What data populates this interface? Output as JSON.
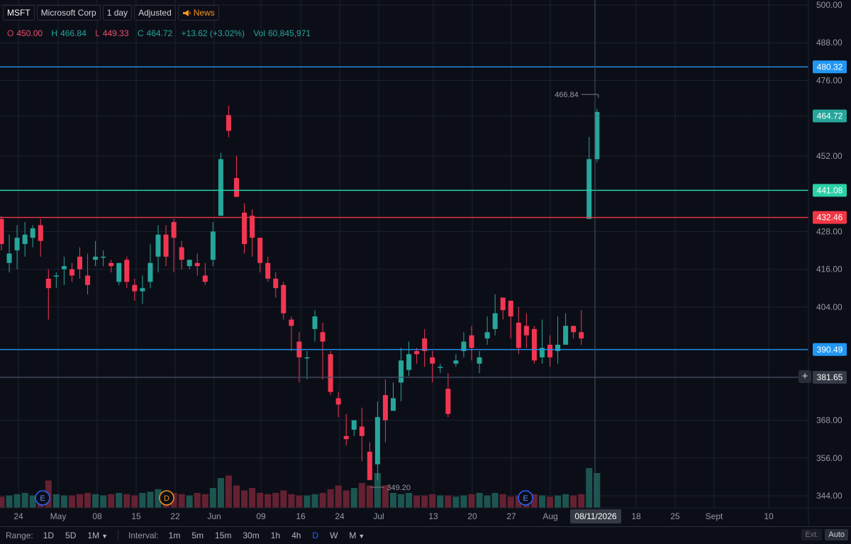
{
  "legend": {
    "symbol": "MSFT",
    "name": "Microsoft Corp",
    "interval": "1 day",
    "adjustment": "Adjusted",
    "news": "News"
  },
  "ohlc": {
    "o_label": "O",
    "o": "450.00",
    "h_label": "H",
    "h": "466.84",
    "l_label": "L",
    "l": "449.33",
    "c_label": "C",
    "c": "464.72",
    "change": "+13.62 (+3.02%)",
    "vol_label": "Vol",
    "vol": "60,845,971"
  },
  "colors": {
    "up": "#26a69a",
    "down": "#f23652",
    "level_blue": "#2962ff",
    "level_green": "#22ab94",
    "level_red": "#f23645",
    "crosshair": "#4a5068"
  },
  "chart_data": {
    "type": "candlestick",
    "y_range": [
      340,
      500
    ],
    "y_ticks": [
      "500.00",
      "488.00",
      "476.00",
      "452.00",
      "428.00",
      "416.00",
      "404.00",
      "368.00",
      "356.00",
      "344.00"
    ],
    "x_ticks": [
      "24",
      "May",
      "08",
      "15",
      "22",
      "Jun",
      "09",
      "16",
      "24",
      "Jul",
      "13",
      "20",
      "27",
      "Aug",
      "18",
      "25",
      "Sept",
      "10"
    ],
    "crosshair_date": "08/11/2026",
    "level_lines": [
      {
        "price": 480.32,
        "label": "480.32",
        "color": "#2196f3"
      },
      {
        "price": 464.72,
        "label": "464.72",
        "color": "#26a69a",
        "dotted": true
      },
      {
        "price": 441.08,
        "label": "441.08",
        "color": "#2bd1a7"
      },
      {
        "price": 432.46,
        "label": "432.46",
        "color": "#f23645"
      },
      {
        "price": 390.49,
        "label": "390.49",
        "color": "#2196f3"
      },
      {
        "price": 381.65,
        "label": "381.65",
        "color": "#787b86",
        "crosshair": true
      }
    ],
    "high_marker": "466.84",
    "low_marker": "349.20",
    "earnings_markers": [
      "E",
      "D",
      "E"
    ],
    "candles": [
      [
        432,
        424,
        433,
        422
      ],
      [
        418,
        421,
        427,
        415
      ],
      [
        422,
        426,
        430,
        416
      ],
      [
        424,
        427,
        431,
        420
      ],
      [
        426,
        429,
        430,
        423
      ],
      [
        430,
        425,
        432,
        420
      ],
      [
        413,
        410,
        416,
        400
      ],
      [
        414,
        414,
        415,
        410
      ],
      [
        416,
        417,
        420,
        411
      ],
      [
        416,
        414,
        418,
        412
      ],
      [
        420,
        416,
        423,
        413
      ],
      [
        414,
        411,
        421,
        408
      ],
      [
        419,
        420,
        425,
        417
      ],
      [
        420,
        420,
        422,
        417
      ],
      [
        418,
        417,
        419,
        415
      ],
      [
        412,
        418,
        418,
        411
      ],
      [
        419,
        412,
        420,
        410
      ],
      [
        411,
        409,
        413,
        406
      ],
      [
        409,
        410,
        414,
        405
      ],
      [
        412,
        418,
        424,
        410
      ],
      [
        420,
        427,
        430,
        415
      ],
      [
        427,
        420,
        430,
        417
      ],
      [
        431,
        426,
        432,
        415
      ],
      [
        423,
        419,
        425,
        416
      ],
      [
        417,
        419,
        419,
        416
      ],
      [
        418,
        417,
        421,
        414
      ],
      [
        414,
        412,
        418,
        411
      ],
      [
        419,
        428,
        431,
        417
      ],
      [
        433,
        451,
        453,
        433
      ],
      [
        465,
        460,
        468,
        458
      ],
      [
        445,
        439,
        452,
        439
      ],
      [
        434,
        424,
        437,
        421
      ],
      [
        433,
        426,
        435,
        420
      ],
      [
        426,
        418,
        426,
        415
      ],
      [
        418,
        413,
        420,
        412
      ],
      [
        413,
        410,
        415,
        407
      ],
      [
        411,
        402,
        412,
        400
      ],
      [
        400,
        398,
        401,
        390
      ],
      [
        393,
        388,
        396,
        380
      ],
      [
        388,
        388,
        390,
        381
      ],
      [
        397,
        401,
        403,
        393
      ],
      [
        396,
        393,
        399,
        381
      ],
      [
        389,
        377,
        390,
        376
      ],
      [
        375,
        373,
        377,
        369
      ],
      [
        363,
        362,
        370,
        360
      ],
      [
        365,
        368,
        368,
        363
      ],
      [
        366,
        363,
        372,
        355
      ],
      [
        358,
        349,
        361,
        349
      ],
      [
        354,
        369,
        374,
        349
      ],
      [
        376,
        368,
        381,
        361
      ],
      [
        371,
        375,
        380,
        372
      ],
      [
        380,
        387,
        391,
        374
      ],
      [
        384,
        389,
        393,
        382
      ],
      [
        390,
        389,
        391,
        386
      ],
      [
        394,
        390,
        397,
        385
      ],
      [
        388,
        386,
        390,
        380
      ],
      [
        385,
        385,
        386,
        383
      ],
      [
        378,
        370,
        383,
        369
      ],
      [
        386,
        387,
        389,
        385
      ],
      [
        390,
        393,
        396,
        388
      ],
      [
        395,
        391,
        398,
        387
      ],
      [
        386,
        388,
        390,
        383
      ],
      [
        394,
        396,
        401,
        392
      ],
      [
        397,
        402,
        408,
        395
      ],
      [
        407,
        403,
        405,
        400
      ],
      [
        406,
        401,
        406,
        394
      ],
      [
        399,
        391,
        404,
        389
      ],
      [
        398,
        395,
        402,
        391
      ],
      [
        397,
        387,
        398,
        386
      ],
      [
        388,
        391,
        400,
        386
      ],
      [
        392,
        388,
        395,
        385
      ],
      [
        390,
        392,
        401,
        386
      ],
      [
        392,
        398,
        402,
        392
      ],
      [
        398,
        396,
        398,
        394
      ],
      [
        396,
        394,
        403,
        392
      ],
      [
        432,
        451,
        458,
        432
      ],
      [
        451,
        466,
        467,
        450
      ]
    ],
    "volumes": [
      "bar",
      "bar",
      "bar",
      "bar",
      "bar",
      "bar",
      "bar",
      "bar",
      "bar",
      "bar",
      "bar",
      "bar",
      "bar",
      "bar",
      "bar",
      "bar",
      "bar",
      "bar",
      "bar",
      "bar",
      "bar",
      "bar",
      "bar",
      "bar",
      "bar",
      "bar",
      "bar",
      "bar",
      "bar",
      "bar",
      "bar",
      "bar",
      "bar",
      "bar",
      "bar",
      "bar",
      "bar",
      "bar",
      "bar",
      "bar",
      "bar",
      "bar",
      "bar",
      "bar",
      "bar",
      "bar",
      "bar",
      "bar",
      "bar",
      "bar",
      "bar",
      "bar",
      "bar",
      "bar",
      "bar",
      "bar",
      "bar",
      "bar",
      "bar",
      "bar",
      "bar",
      "bar",
      "bar",
      "bar",
      "bar",
      "bar",
      "bar",
      "bar",
      "bar",
      "bar",
      "bar",
      "bar",
      "bar",
      "bar",
      "bar",
      "bar",
      "bar"
    ],
    "volume_values": [
      0.45,
      0.5,
      0.55,
      0.6,
      0.5,
      0.55,
      1.1,
      0.55,
      0.5,
      0.5,
      0.55,
      0.6,
      0.55,
      0.5,
      0.55,
      0.6,
      0.55,
      0.5,
      0.6,
      0.65,
      0.75,
      0.55,
      0.6,
      0.55,
      0.5,
      0.6,
      0.55,
      0.8,
      1.2,
      1.3,
      0.9,
      0.7,
      0.8,
      0.6,
      0.55,
      0.6,
      0.7,
      0.55,
      0.5,
      0.5,
      0.55,
      0.6,
      0.75,
      0.9,
      0.7,
      0.8,
      1.0,
      0.9,
      1.4,
      0.9,
      0.6,
      0.55,
      0.6,
      0.5,
      0.5,
      0.55,
      0.5,
      0.5,
      0.45,
      0.5,
      0.55,
      0.6,
      0.5,
      0.6,
      0.55,
      0.45,
      0.5,
      0.45,
      0.55,
      0.5,
      0.45,
      0.5,
      0.55,
      0.5,
      0.55,
      1.6,
      1.4
    ]
  },
  "bottom_bar": {
    "range_label": "Range:",
    "ranges": [
      "1D",
      "5D",
      "1M"
    ],
    "interval_label": "Interval:",
    "intervals": [
      "1m",
      "5m",
      "15m",
      "30m",
      "1h",
      "4h",
      "D",
      "W",
      "M"
    ],
    "active_interval": "D",
    "ext": "Ext.",
    "auto": "Auto"
  }
}
